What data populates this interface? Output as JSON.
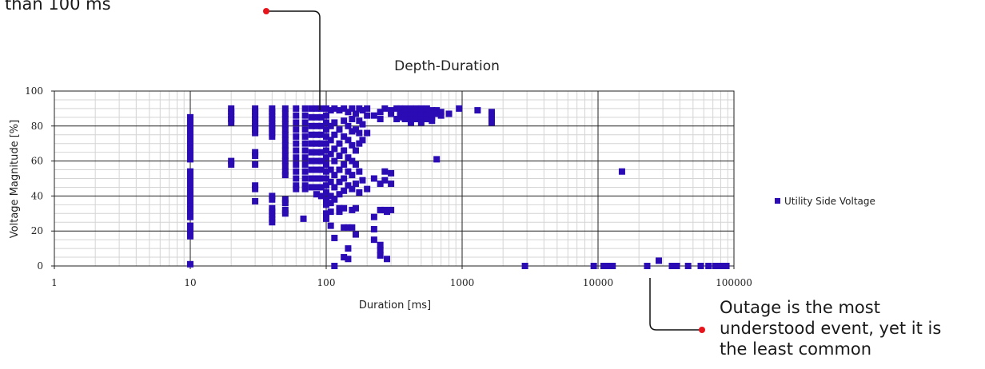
{
  "callouts": {
    "top": "than 100 ms",
    "bottom": "Outage is the most\nunderstood event, yet it is\nthe least common"
  },
  "colors": {
    "marker": "#2a0bb4",
    "callout_dot": "#e8141c",
    "grid_major": "#222222",
    "grid_minor": "#d4d4d4"
  },
  "chart_data": {
    "type": "scatter",
    "title": "Depth-Duration",
    "xlabel": "Duration [ms]",
    "ylabel": "Voltage Magnitude [%]",
    "x_scale": "log",
    "xlim": [
      1,
      100000
    ],
    "ylim": [
      0,
      100
    ],
    "x_ticks": [
      "1",
      "10",
      "100",
      "1000",
      "10000",
      "100000"
    ],
    "y_ticks": [
      "0",
      "20",
      "40",
      "60",
      "80",
      "100"
    ],
    "grid": true,
    "legend_position": "right",
    "series": [
      {
        "name": "Utility Side Voltage",
        "points": [
          [
            10,
            85
          ],
          [
            10,
            83
          ],
          [
            10,
            81
          ],
          [
            10,
            79
          ],
          [
            10,
            77
          ],
          [
            10,
            75
          ],
          [
            10,
            73
          ],
          [
            10,
            71
          ],
          [
            10,
            69
          ],
          [
            10,
            67
          ],
          [
            10,
            65
          ],
          [
            10,
            63
          ],
          [
            10,
            61
          ],
          [
            10,
            54
          ],
          [
            10,
            52
          ],
          [
            10,
            50
          ],
          [
            10,
            48
          ],
          [
            10,
            46
          ],
          [
            10,
            44
          ],
          [
            10,
            42
          ],
          [
            10,
            40
          ],
          [
            10,
            38
          ],
          [
            10,
            36
          ],
          [
            10,
            34
          ],
          [
            10,
            32
          ],
          [
            10,
            30
          ],
          [
            10,
            28
          ],
          [
            10,
            23
          ],
          [
            10,
            21
          ],
          [
            10,
            19
          ],
          [
            10,
            17
          ],
          [
            10,
            1
          ],
          [
            20,
            90
          ],
          [
            20,
            88
          ],
          [
            20,
            86
          ],
          [
            20,
            84
          ],
          [
            20,
            82
          ],
          [
            20,
            60
          ],
          [
            20,
            58
          ],
          [
            30,
            90
          ],
          [
            30,
            88
          ],
          [
            30,
            86
          ],
          [
            30,
            84
          ],
          [
            30,
            82
          ],
          [
            30,
            80
          ],
          [
            30,
            78
          ],
          [
            30,
            76
          ],
          [
            30,
            65
          ],
          [
            30,
            63
          ],
          [
            30,
            58
          ],
          [
            30,
            46
          ],
          [
            30,
            44
          ],
          [
            30,
            37
          ],
          [
            40,
            90
          ],
          [
            40,
            88
          ],
          [
            40,
            86
          ],
          [
            40,
            84
          ],
          [
            40,
            82
          ],
          [
            40,
            80
          ],
          [
            40,
            78
          ],
          [
            40,
            76
          ],
          [
            40,
            74
          ],
          [
            40,
            40
          ],
          [
            40,
            38
          ],
          [
            40,
            33
          ],
          [
            40,
            31
          ],
          [
            40,
            29
          ],
          [
            40,
            27
          ],
          [
            40,
            25
          ],
          [
            50,
            90
          ],
          [
            50,
            87
          ],
          [
            50,
            84
          ],
          [
            50,
            81
          ],
          [
            50,
            78
          ],
          [
            50,
            75
          ],
          [
            50,
            72
          ],
          [
            50,
            69
          ],
          [
            50,
            66
          ],
          [
            50,
            63
          ],
          [
            50,
            60
          ],
          [
            50,
            57
          ],
          [
            50,
            54
          ],
          [
            50,
            52
          ],
          [
            50,
            38
          ],
          [
            50,
            36
          ],
          [
            50,
            32
          ],
          [
            50,
            30
          ],
          [
            60,
            90
          ],
          [
            60,
            86
          ],
          [
            60,
            82
          ],
          [
            60,
            78
          ],
          [
            60,
            74
          ],
          [
            60,
            70
          ],
          [
            60,
            66
          ],
          [
            60,
            62
          ],
          [
            60,
            58
          ],
          [
            60,
            54
          ],
          [
            60,
            50
          ],
          [
            60,
            46
          ],
          [
            60,
            44
          ],
          [
            68,
            27
          ],
          [
            70,
            90
          ],
          [
            70,
            86
          ],
          [
            70,
            82
          ],
          [
            70,
            78
          ],
          [
            70,
            74
          ],
          [
            70,
            70
          ],
          [
            70,
            66
          ],
          [
            70,
            62
          ],
          [
            70,
            58
          ],
          [
            70,
            54
          ],
          [
            70,
            50
          ],
          [
            70,
            46
          ],
          [
            70,
            44
          ],
          [
            78,
            90
          ],
          [
            78,
            85
          ],
          [
            78,
            80
          ],
          [
            78,
            75
          ],
          [
            78,
            70
          ],
          [
            78,
            65
          ],
          [
            78,
            60
          ],
          [
            78,
            55
          ],
          [
            78,
            50
          ],
          [
            78,
            45
          ],
          [
            85,
            90
          ],
          [
            85,
            85
          ],
          [
            85,
            80
          ],
          [
            85,
            75
          ],
          [
            85,
            70
          ],
          [
            85,
            65
          ],
          [
            85,
            60
          ],
          [
            85,
            55
          ],
          [
            85,
            50
          ],
          [
            85,
            45
          ],
          [
            85,
            41
          ],
          [
            92,
            90
          ],
          [
            92,
            85
          ],
          [
            92,
            80
          ],
          [
            92,
            75
          ],
          [
            92,
            70
          ],
          [
            92,
            65
          ],
          [
            92,
            60
          ],
          [
            92,
            55
          ],
          [
            92,
            50
          ],
          [
            92,
            45
          ],
          [
            92,
            40
          ],
          [
            100,
            90
          ],
          [
            100,
            86
          ],
          [
            100,
            82
          ],
          [
            100,
            78
          ],
          [
            100,
            74
          ],
          [
            100,
            70
          ],
          [
            100,
            66
          ],
          [
            100,
            62
          ],
          [
            100,
            58
          ],
          [
            100,
            54
          ],
          [
            100,
            50
          ],
          [
            100,
            46
          ],
          [
            100,
            42
          ],
          [
            100,
            38
          ],
          [
            100,
            35
          ],
          [
            100,
            30
          ],
          [
            100,
            27
          ],
          [
            108,
            89
          ],
          [
            108,
            80
          ],
          [
            108,
            72
          ],
          [
            108,
            64
          ],
          [
            108,
            55
          ],
          [
            108,
            48
          ],
          [
            108,
            40
          ],
          [
            108,
            36
          ],
          [
            108,
            31
          ],
          [
            108,
            23
          ],
          [
            115,
            90
          ],
          [
            115,
            82
          ],
          [
            115,
            75
          ],
          [
            115,
            67
          ],
          [
            115,
            60
          ],
          [
            115,
            52
          ],
          [
            115,
            45
          ],
          [
            115,
            38
          ],
          [
            115,
            16
          ],
          [
            115,
            0
          ],
          [
            125,
            89
          ],
          [
            125,
            78
          ],
          [
            125,
            70
          ],
          [
            125,
            63
          ],
          [
            125,
            55
          ],
          [
            125,
            48
          ],
          [
            125,
            41
          ],
          [
            125,
            33
          ],
          [
            125,
            31
          ],
          [
            135,
            90
          ],
          [
            135,
            83
          ],
          [
            135,
            74
          ],
          [
            135,
            66
          ],
          [
            135,
            58
          ],
          [
            135,
            50
          ],
          [
            135,
            43
          ],
          [
            135,
            33
          ],
          [
            135,
            22
          ],
          [
            135,
            5
          ],
          [
            145,
            88
          ],
          [
            145,
            80
          ],
          [
            145,
            72
          ],
          [
            145,
            62
          ],
          [
            145,
            54
          ],
          [
            145,
            46
          ],
          [
            145,
            22
          ],
          [
            145,
            10
          ],
          [
            145,
            4
          ],
          [
            155,
            90
          ],
          [
            155,
            84
          ],
          [
            155,
            77
          ],
          [
            155,
            69
          ],
          [
            155,
            60
          ],
          [
            155,
            52
          ],
          [
            155,
            44
          ],
          [
            155,
            32
          ],
          [
            155,
            22
          ],
          [
            165,
            87
          ],
          [
            165,
            78
          ],
          [
            165,
            66
          ],
          [
            165,
            58
          ],
          [
            165,
            47
          ],
          [
            165,
            33
          ],
          [
            165,
            18
          ],
          [
            175,
            90
          ],
          [
            175,
            83
          ],
          [
            175,
            76
          ],
          [
            175,
            70
          ],
          [
            175,
            54
          ],
          [
            175,
            42
          ],
          [
            185,
            89
          ],
          [
            185,
            81
          ],
          [
            185,
            72
          ],
          [
            185,
            49
          ],
          [
            200,
            90
          ],
          [
            200,
            86
          ],
          [
            200,
            76
          ],
          [
            200,
            44
          ],
          [
            225,
            86
          ],
          [
            225,
            50
          ],
          [
            225,
            28
          ],
          [
            225,
            21
          ],
          [
            225,
            15
          ],
          [
            250,
            88
          ],
          [
            250,
            84
          ],
          [
            250,
            47
          ],
          [
            250,
            32
          ],
          [
            250,
            12
          ],
          [
            250,
            9
          ],
          [
            250,
            6
          ],
          [
            270,
            90
          ],
          [
            270,
            54
          ],
          [
            270,
            49
          ],
          [
            270,
            32
          ],
          [
            280,
            31
          ],
          [
            280,
            4
          ],
          [
            300,
            89
          ],
          [
            300,
            87
          ],
          [
            300,
            53
          ],
          [
            300,
            47
          ],
          [
            300,
            32
          ],
          [
            330,
            90
          ],
          [
            330,
            84
          ],
          [
            350,
            90
          ],
          [
            350,
            87
          ],
          [
            350,
            85
          ],
          [
            380,
            90
          ],
          [
            380,
            88
          ],
          [
            380,
            86
          ],
          [
            380,
            84
          ],
          [
            420,
            90
          ],
          [
            420,
            88
          ],
          [
            420,
            86
          ],
          [
            420,
            84
          ],
          [
            420,
            82
          ],
          [
            460,
            90
          ],
          [
            460,
            88
          ],
          [
            460,
            86
          ],
          [
            460,
            84
          ],
          [
            500,
            90
          ],
          [
            500,
            88
          ],
          [
            500,
            86
          ],
          [
            500,
            84
          ],
          [
            500,
            82
          ],
          [
            550,
            90
          ],
          [
            550,
            88
          ],
          [
            550,
            86
          ],
          [
            550,
            84
          ],
          [
            600,
            89
          ],
          [
            600,
            87
          ],
          [
            600,
            85
          ],
          [
            600,
            83
          ],
          [
            650,
            89
          ],
          [
            650,
            87
          ],
          [
            650,
            61
          ],
          [
            700,
            88
          ],
          [
            700,
            86
          ],
          [
            800,
            87
          ],
          [
            950,
            90
          ],
          [
            1300,
            89
          ],
          [
            1650,
            88
          ],
          [
            1650,
            86
          ],
          [
            1650,
            84
          ],
          [
            1650,
            82
          ],
          [
            2900,
            0
          ],
          [
            9300,
            0
          ],
          [
            11000,
            0
          ],
          [
            11600,
            0
          ],
          [
            12300,
            0
          ],
          [
            12800,
            0
          ],
          [
            15000,
            54
          ],
          [
            23000,
            0
          ],
          [
            28000,
            3
          ],
          [
            35000,
            0
          ],
          [
            38000,
            0
          ],
          [
            46000,
            0
          ],
          [
            57000,
            0
          ],
          [
            65000,
            0
          ],
          [
            73000,
            0
          ],
          [
            80000,
            0
          ],
          [
            88000,
            0
          ]
        ]
      }
    ]
  }
}
